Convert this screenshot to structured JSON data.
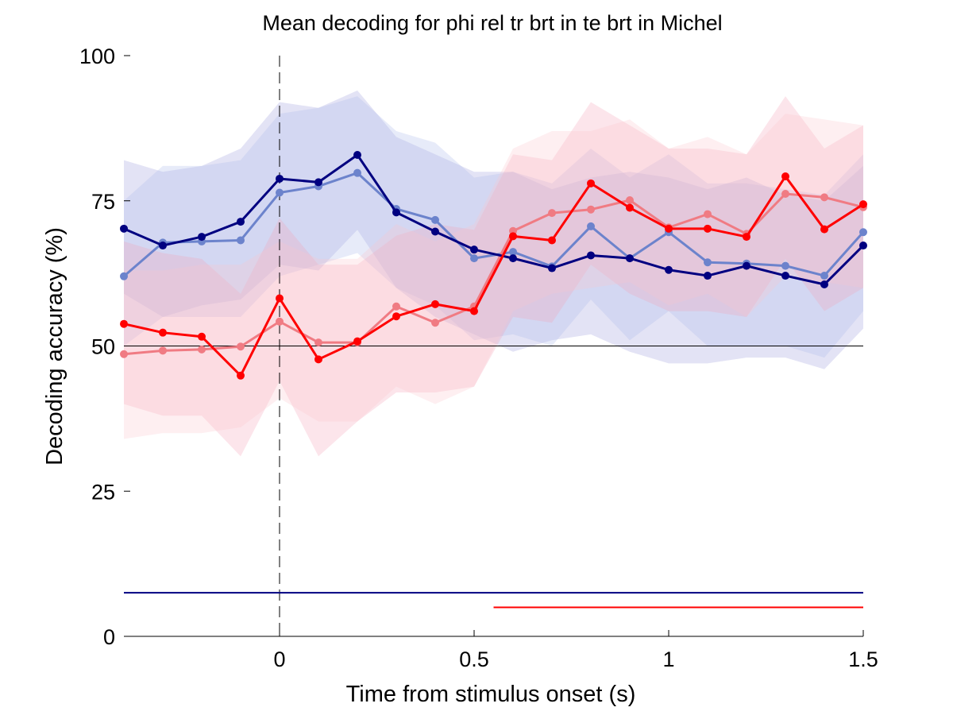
{
  "chart_data": {
    "type": "line",
    "title": "Mean decoding for phi rel tr brt in te brt in  Michel",
    "xlabel": "Time from stimulus onset (s)",
    "ylabel": "Decoding accuracy (%)",
    "xlim": [
      -0.4,
      1.5
    ],
    "ylim": [
      0,
      100
    ],
    "xticks": [
      0,
      0.5,
      1,
      1.5
    ],
    "xtick_labels": [
      "0",
      "0.5",
      "1",
      "1.5"
    ],
    "yticks": [
      0,
      25,
      50,
      75,
      100
    ],
    "ytick_labels": [
      "0",
      "25",
      "50",
      "75",
      "100"
    ],
    "grid": false,
    "legend": "none",
    "chance_level": 50,
    "stimulus_onset": 0,
    "x": [
      -0.4,
      -0.3,
      -0.2,
      -0.1,
      0.0,
      0.1,
      0.2,
      0.3,
      0.4,
      0.5,
      0.6,
      0.7,
      0.8,
      0.9,
      1.0,
      1.1,
      1.2,
      1.3,
      1.4,
      1.5
    ],
    "series": [
      {
        "color": "#000080",
        "band_color": "#9b9bdc",
        "values": [
          70.2,
          67.3,
          68.8,
          71.4,
          78.8,
          78.2,
          82.9,
          73.0,
          69.7,
          66.6,
          65.1,
          63.4,
          65.6,
          65.1,
          63.1,
          62.1,
          63.8,
          62.1,
          60.6,
          67.3
        ],
        "lower": [
          59,
          55,
          57,
          58,
          64,
          63,
          70,
          60,
          55,
          52,
          49,
          51,
          52,
          49,
          47,
          47,
          48,
          48,
          46,
          53
        ],
        "upper": [
          82,
          80,
          81,
          84,
          92,
          91,
          94,
          86,
          83,
          80,
          80,
          77,
          79,
          80,
          79,
          77,
          79,
          76,
          75,
          81
        ],
        "significance_bar": {
          "y": 7.5,
          "x_start": -0.4,
          "x_end": 1.5
        }
      },
      {
        "color": "#6c83cc",
        "band_color": "#aab8e8",
        "values": [
          62.0,
          67.8,
          68.0,
          68.2,
          76.4,
          77.5,
          79.8,
          73.6,
          71.7,
          65.1,
          66.2,
          63.7,
          70.6,
          65.1,
          69.6,
          64.4,
          64.2,
          63.8,
          62.1,
          69.6
        ],
        "lower": [
          50,
          55,
          55,
          55,
          62,
          64,
          66,
          60,
          57,
          51,
          52,
          50,
          58,
          51,
          56,
          50,
          50,
          50,
          48,
          56
        ],
        "upper": [
          75,
          81,
          81,
          82,
          90,
          91,
          93,
          87,
          85,
          79,
          80,
          78,
          84,
          79,
          83,
          78,
          78,
          77,
          76,
          83
        ]
      },
      {
        "color": "#ff0000",
        "band_color": "#f5a0b8",
        "values": [
          53.8,
          52.3,
          51.6,
          44.9,
          58.2,
          47.7,
          50.8,
          55.1,
          57.2,
          56.0,
          68.9,
          68.2,
          78.0,
          73.8,
          70.2,
          70.2,
          68.8,
          79.2,
          70.1,
          74.4
        ],
        "lower": [
          40,
          38,
          38,
          31,
          44,
          31,
          37,
          42,
          42,
          43,
          55,
          54,
          64,
          59,
          56,
          56,
          55,
          65,
          56,
          60
        ],
        "upper": [
          68,
          66,
          65,
          59,
          72,
          64,
          64,
          69,
          71,
          70,
          83,
          82,
          92,
          88,
          84,
          84,
          83,
          93,
          84,
          88
        ],
        "significance_bar": {
          "y": 5,
          "x_start": 0.55,
          "x_end": 1.5
        }
      },
      {
        "color": "#f07b83",
        "band_color": "#fbc5cc",
        "values": [
          48.6,
          49.2,
          49.4,
          49.9,
          54.2,
          50.6,
          50.6,
          56.8,
          54.0,
          56.8,
          69.8,
          72.9,
          73.5,
          75.1,
          70.4,
          72.7,
          69.3,
          76.2,
          75.6,
          73.9
        ],
        "lower": [
          34,
          35,
          35,
          36,
          41,
          37,
          37,
          43,
          40,
          43,
          56,
          59,
          60,
          61,
          57,
          59,
          55,
          62,
          61,
          60
        ],
        "upper": [
          63,
          63,
          64,
          64,
          68,
          65,
          65,
          71,
          68,
          71,
          84,
          87,
          87,
          89,
          84,
          86,
          83,
          90,
          89,
          88
        ]
      }
    ]
  }
}
